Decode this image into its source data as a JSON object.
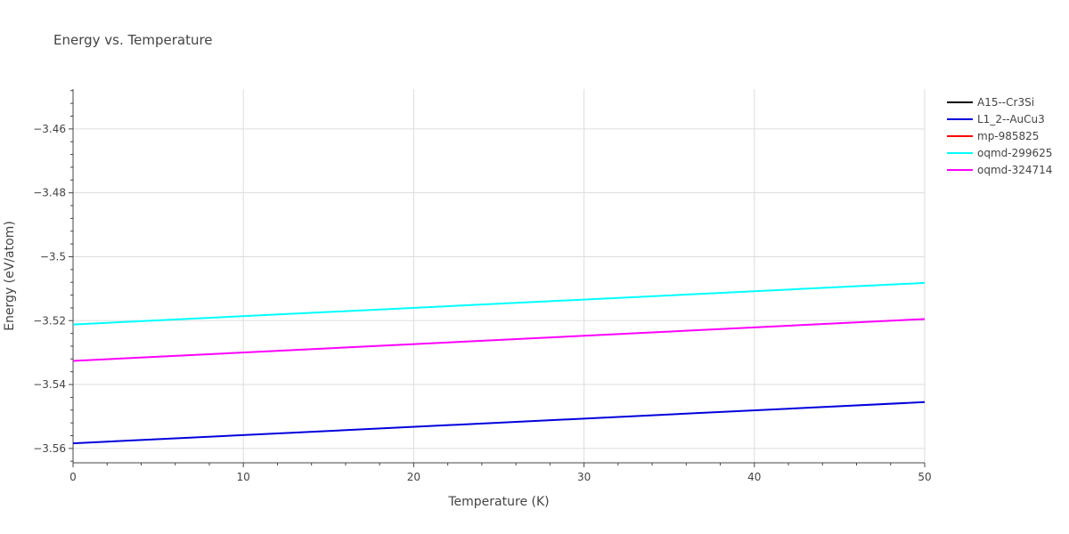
{
  "chart_data": {
    "type": "line",
    "title": "Energy vs. Temperature",
    "xlabel": "Temperature (K)",
    "ylabel": "Energy (eV/atom)",
    "xlim": [
      0,
      50
    ],
    "ylim": [
      -3.5645,
      -3.4475
    ],
    "x_ticks": [
      0,
      10,
      20,
      30,
      40,
      50
    ],
    "x_tick_labels": [
      "0",
      "10",
      "20",
      "30",
      "40",
      "50"
    ],
    "y_ticks": [
      -3.56,
      -3.54,
      -3.52,
      -3.5,
      -3.48,
      -3.46
    ],
    "y_tick_labels": [
      "−3.56",
      "−3.54",
      "−3.52",
      "−3.5",
      "−3.48",
      "−3.46"
    ],
    "grid": true,
    "legend_position": "top-right",
    "x": [
      0,
      50
    ],
    "series": [
      {
        "name": "A15--Cr3Si",
        "color": "#000000",
        "values": [
          null,
          null
        ]
      },
      {
        "name": "L1_2--AuCu3",
        "color": "#0000dd",
        "values": [
          -3.5584,
          -3.5455
        ]
      },
      {
        "name": "mp-985825",
        "color": "#ff0000",
        "values": [
          null,
          null
        ]
      },
      {
        "name": "oqmd-299625",
        "color": "#00ffff",
        "values": [
          -3.5212,
          -3.5082
        ]
      },
      {
        "name": "oqmd-324714",
        "color": "#ff00ff",
        "values": [
          -3.5326,
          -3.5195
        ]
      }
    ]
  }
}
